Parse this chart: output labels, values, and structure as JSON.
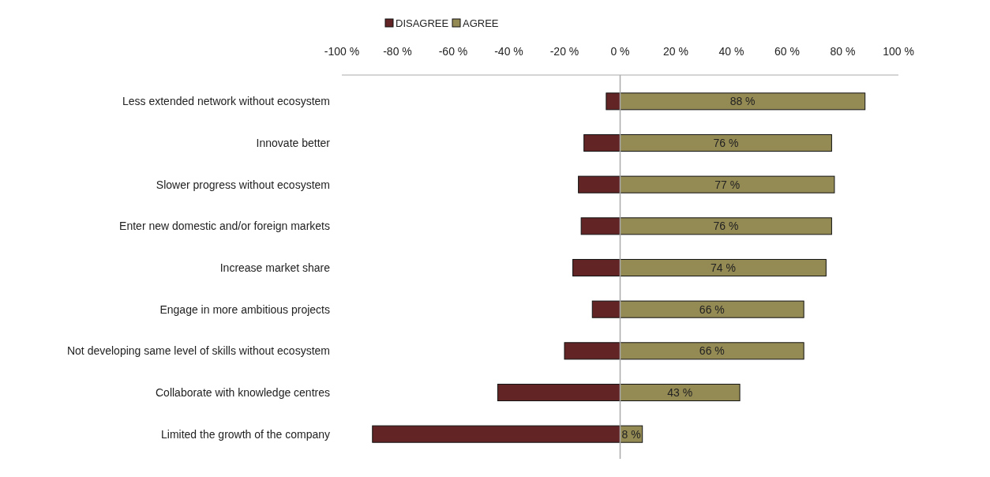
{
  "chart_data": {
    "type": "bar",
    "orientation": "horizontal",
    "stacked": true,
    "ref_lines": [
      {
        "axis": "x",
        "value": 0,
        "color": "#aaaaaa"
      }
    ],
    "categories": [
      "Less extended network without ecosystem",
      "Innovate better",
      "Slower progress without ecosystem",
      "Enter new domestic and/or foreign markets",
      "Increase market share",
      "Engage in more ambitious projects",
      "Not developing same level of skills without ecosystem",
      "Collaborate with knowledge centres",
      "Limited the growth of the company"
    ],
    "series": [
      {
        "name": "DISAGREE",
        "color": "#622425",
        "values": [
          -5,
          -13,
          -15,
          -14,
          -17,
          -10,
          -20,
          -44,
          -89
        ]
      },
      {
        "name": "AGREE",
        "color": "#948a54",
        "values": [
          88,
          76,
          77,
          76,
          74,
          66,
          66,
          43,
          8
        ],
        "value_labels": [
          "88 %",
          "76 %",
          "77 %",
          "76 %",
          "74 %",
          "66 %",
          "66 %",
          "43 %",
          "8 %"
        ]
      }
    ],
    "xlim": [
      -100,
      100
    ],
    "xticks": [
      {
        "value": -100,
        "label": "-100 %"
      },
      {
        "value": -80,
        "label": "-80 %"
      },
      {
        "value": -60,
        "label": "-60 %"
      },
      {
        "value": -40,
        "label": "-40 %"
      },
      {
        "value": -20,
        "label": "-20 %"
      },
      {
        "value": 0,
        "label": "0 %"
      },
      {
        "value": 20,
        "label": "20 %"
      },
      {
        "value": 40,
        "label": "40 %"
      },
      {
        "value": 60,
        "label": "60 %"
      },
      {
        "value": 80,
        "label": "80 %"
      },
      {
        "value": 100,
        "label": "100 %"
      }
    ],
    "legend": "top",
    "grid": false
  }
}
